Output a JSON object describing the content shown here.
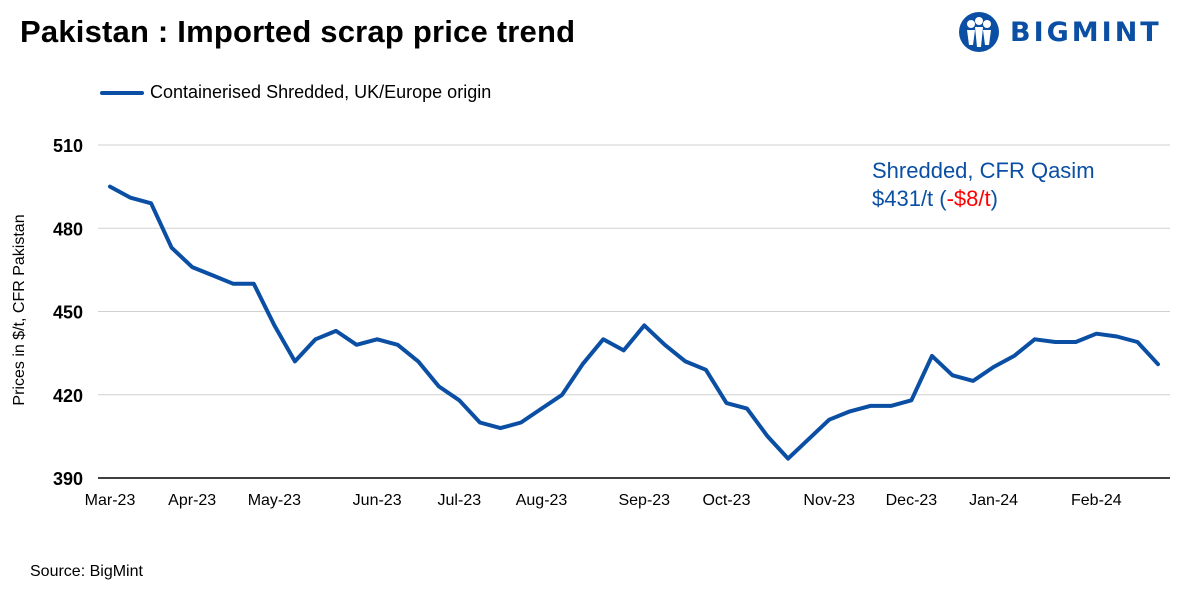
{
  "title": "Pakistan : Imported scrap price trend",
  "brand": {
    "name": "BIGMINT",
    "color": "#0a4fa3"
  },
  "legend": {
    "label": "Containerised Shredded, UK/Europe origin"
  },
  "annotation": {
    "line1": "Shredded, CFR Qasim",
    "price": "$431/t (",
    "change": "-$8/t",
    "close": ")",
    "color": "#0a4fa3",
    "change_color": "#ff0000"
  },
  "source": "Source: BigMint",
  "chart_data": {
    "type": "line",
    "title": "Pakistan : Imported scrap price trend",
    "ylabel": "Prices in $/t, CFR Pakistan",
    "xlabel": "",
    "ylim": [
      390,
      510
    ],
    "yticks": [
      390,
      420,
      450,
      480,
      510
    ],
    "grid": true,
    "legend_position": "top-left",
    "x_tick_labels": [
      "Mar-23",
      "Apr-23",
      "May-23",
      "Jun-23",
      "Jul-23",
      "Aug-23",
      "Sep-23",
      "Oct-23",
      "Nov-23",
      "Dec-23",
      "Jan-24",
      "Feb-24"
    ],
    "x_tick_index": [
      0,
      4,
      8,
      13,
      17,
      21,
      26,
      30,
      35,
      39,
      43,
      48
    ],
    "series": [
      {
        "name": "Containerised Shredded, UK/Europe origin",
        "color": "#0a4fa3",
        "values": [
          495,
          491,
          489,
          473,
          466,
          463,
          460,
          460,
          445,
          432,
          440,
          443,
          438,
          440,
          438,
          432,
          423,
          418,
          410,
          408,
          410,
          415,
          420,
          431,
          440,
          436,
          445,
          438,
          432,
          429,
          417,
          415,
          405,
          397,
          404,
          411,
          414,
          416,
          416,
          418,
          434,
          427,
          425,
          430,
          434,
          440,
          439,
          439,
          442,
          441,
          439,
          431
        ]
      }
    ]
  }
}
